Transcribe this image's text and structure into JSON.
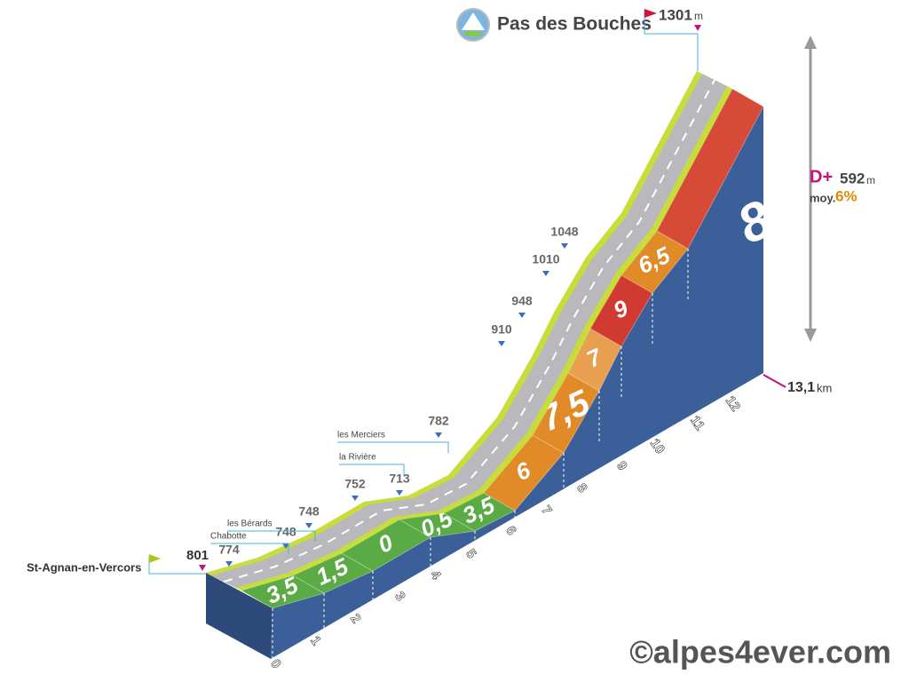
{
  "summit": {
    "name": "Pas des Bouches",
    "altitude": "1301",
    "unit": "m"
  },
  "start": {
    "name": "St-Agnan-en-Vercors",
    "altitude": "801"
  },
  "stats": {
    "gain_label": "D+",
    "gain": "592",
    "gain_unit": "m",
    "avg_label": "moy.",
    "avg": "6%"
  },
  "distance": {
    "value": "13,1",
    "unit": "km"
  },
  "km_marks": [
    "0",
    "1",
    "2",
    "3",
    "4",
    "5",
    "6",
    "7",
    "8",
    "9",
    "10",
    "11",
    "12"
  ],
  "altitudes": [
    "774",
    "748",
    "748",
    "752",
    "713",
    "782",
    "910",
    "948",
    "1010",
    "1048"
  ],
  "places": [
    "Chabotte",
    "les Bérards",
    "la Rivière",
    "les Merciers"
  ],
  "gradients": [
    "3,5",
    "1,5",
    "0",
    "0,5",
    "3,5",
    "6",
    "7,5",
    "7",
    "9",
    "6,5",
    "8"
  ],
  "copyright": "©alpes4ever.com"
}
